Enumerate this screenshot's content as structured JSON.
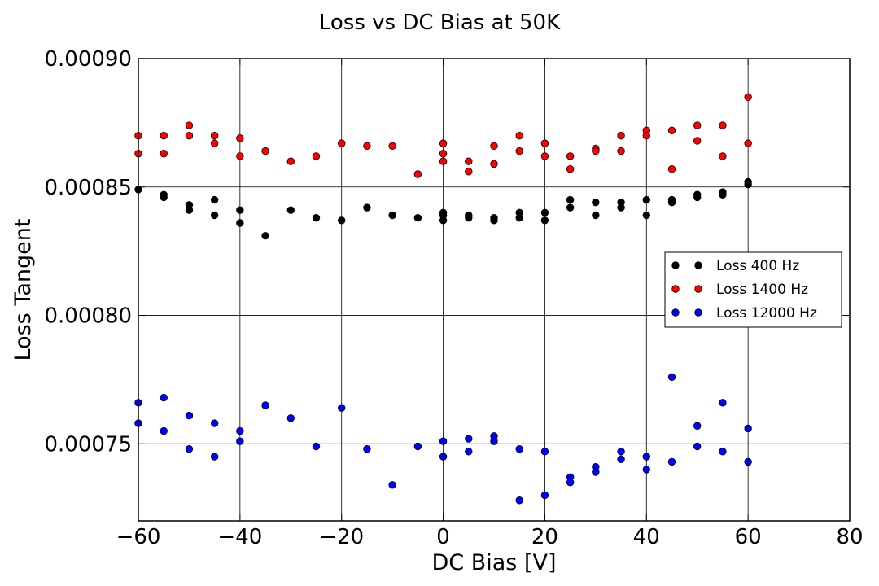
{
  "chart_data": {
    "type": "scatter",
    "title": "Loss vs DC Bias at 50K",
    "xlabel": "DC Bias [V]",
    "ylabel": "Loss Tangent",
    "xlim": [
      -60,
      80
    ],
    "ylim": [
      0.00072,
      0.0009
    ],
    "x_ticks": [
      -60,
      -40,
      -20,
      0,
      20,
      40,
      60,
      80
    ],
    "x_tick_labels": [
      "−60",
      "−40",
      "−20",
      "0",
      "20",
      "40",
      "60",
      "80"
    ],
    "y_ticks": [
      0.00075,
      0.0008,
      0.00085,
      0.0009
    ],
    "y_tick_labels": [
      "0.00075",
      "0.00080",
      "0.00085",
      "0.00090"
    ],
    "grid": true,
    "legend_position": "center-right",
    "series": [
      {
        "name": "Loss 400 Hz",
        "color": "#000000",
        "points": [
          [
            -60,
            0.000849
          ],
          [
            -55,
            0.000847
          ],
          [
            -55,
            0.000846
          ],
          [
            -50,
            0.000843
          ],
          [
            -50,
            0.000841
          ],
          [
            -45,
            0.000845
          ],
          [
            -45,
            0.000839
          ],
          [
            -40,
            0.000841
          ],
          [
            -40,
            0.000836
          ],
          [
            -35,
            0.000831
          ],
          [
            -30,
            0.000841
          ],
          [
            -25,
            0.000838
          ],
          [
            -20,
            0.000837
          ],
          [
            -15,
            0.000842
          ],
          [
            -10,
            0.000839
          ],
          [
            -5,
            0.000838
          ],
          [
            0,
            0.00084
          ],
          [
            0,
            0.000839
          ],
          [
            0,
            0.000837
          ],
          [
            5,
            0.000839
          ],
          [
            5,
            0.000838
          ],
          [
            10,
            0.000838
          ],
          [
            10,
            0.000837
          ],
          [
            15,
            0.00084
          ],
          [
            15,
            0.000838
          ],
          [
            20,
            0.00084
          ],
          [
            20,
            0.000837
          ],
          [
            25,
            0.000845
          ],
          [
            25,
            0.000842
          ],
          [
            30,
            0.000844
          ],
          [
            30,
            0.000839
          ],
          [
            35,
            0.000844
          ],
          [
            35,
            0.000842
          ],
          [
            40,
            0.000845
          ],
          [
            40,
            0.000839
          ],
          [
            45,
            0.000845
          ],
          [
            45,
            0.000844
          ],
          [
            50,
            0.000847
          ],
          [
            50,
            0.000846
          ],
          [
            55,
            0.000848
          ],
          [
            55,
            0.000847
          ],
          [
            60,
            0.000852
          ],
          [
            60,
            0.000851
          ]
        ]
      },
      {
        "name": "Loss 1400 Hz",
        "color": "#ff0000",
        "points": [
          [
            -60,
            0.00087
          ],
          [
            -60,
            0.000863
          ],
          [
            -55,
            0.00087
          ],
          [
            -55,
            0.000863
          ],
          [
            -50,
            0.000874
          ],
          [
            -50,
            0.00087
          ],
          [
            -45,
            0.00087
          ],
          [
            -45,
            0.000867
          ],
          [
            -40,
            0.000869
          ],
          [
            -40,
            0.000862
          ],
          [
            -35,
            0.000864
          ],
          [
            -30,
            0.00086
          ],
          [
            -25,
            0.000862
          ],
          [
            -20,
            0.000867
          ],
          [
            -15,
            0.000866
          ],
          [
            -10,
            0.000866
          ],
          [
            -5,
            0.000855
          ],
          [
            0,
            0.000867
          ],
          [
            0,
            0.000863
          ],
          [
            0,
            0.00086
          ],
          [
            5,
            0.00086
          ],
          [
            5,
            0.000856
          ],
          [
            10,
            0.000866
          ],
          [
            10,
            0.000859
          ],
          [
            15,
            0.00087
          ],
          [
            15,
            0.000864
          ],
          [
            20,
            0.000867
          ],
          [
            20,
            0.000862
          ],
          [
            25,
            0.000862
          ],
          [
            25,
            0.000857
          ],
          [
            30,
            0.000865
          ],
          [
            30,
            0.000864
          ],
          [
            35,
            0.00087
          ],
          [
            35,
            0.000864
          ],
          [
            40,
            0.000872
          ],
          [
            40,
            0.00087
          ],
          [
            45,
            0.000872
          ],
          [
            45,
            0.000857
          ],
          [
            50,
            0.000874
          ],
          [
            50,
            0.000868
          ],
          [
            55,
            0.000874
          ],
          [
            55,
            0.000862
          ],
          [
            60,
            0.000885
          ],
          [
            60,
            0.000867
          ]
        ]
      },
      {
        "name": "Loss 12000 Hz",
        "color": "#0000ff",
        "points": [
          [
            -60,
            0.000766
          ],
          [
            -60,
            0.000758
          ],
          [
            -55,
            0.000768
          ],
          [
            -55,
            0.000755
          ],
          [
            -50,
            0.000761
          ],
          [
            -50,
            0.000748
          ],
          [
            -45,
            0.000758
          ],
          [
            -45,
            0.000745
          ],
          [
            -40,
            0.000755
          ],
          [
            -40,
            0.000751
          ],
          [
            -35,
            0.000765
          ],
          [
            -30,
            0.00076
          ],
          [
            -25,
            0.000749
          ],
          [
            -20,
            0.000764
          ],
          [
            -15,
            0.000748
          ],
          [
            -10,
            0.000734
          ],
          [
            -5,
            0.000749
          ],
          [
            0,
            0.000751
          ],
          [
            0,
            0.000745
          ],
          [
            5,
            0.000752
          ],
          [
            5,
            0.000747
          ],
          [
            10,
            0.000753
          ],
          [
            10,
            0.000751
          ],
          [
            15,
            0.000748
          ],
          [
            15,
            0.000728
          ],
          [
            20,
            0.000747
          ],
          [
            20,
            0.00073
          ],
          [
            25,
            0.000737
          ],
          [
            25,
            0.000735
          ],
          [
            30,
            0.000741
          ],
          [
            30,
            0.000739
          ],
          [
            35,
            0.000747
          ],
          [
            35,
            0.000744
          ],
          [
            40,
            0.000745
          ],
          [
            40,
            0.00074
          ],
          [
            45,
            0.000776
          ],
          [
            45,
            0.000743
          ],
          [
            50,
            0.000757
          ],
          [
            50,
            0.000749
          ],
          [
            55,
            0.000766
          ],
          [
            55,
            0.000747
          ],
          [
            60,
            0.000756
          ],
          [
            60,
            0.000743
          ]
        ]
      }
    ]
  }
}
